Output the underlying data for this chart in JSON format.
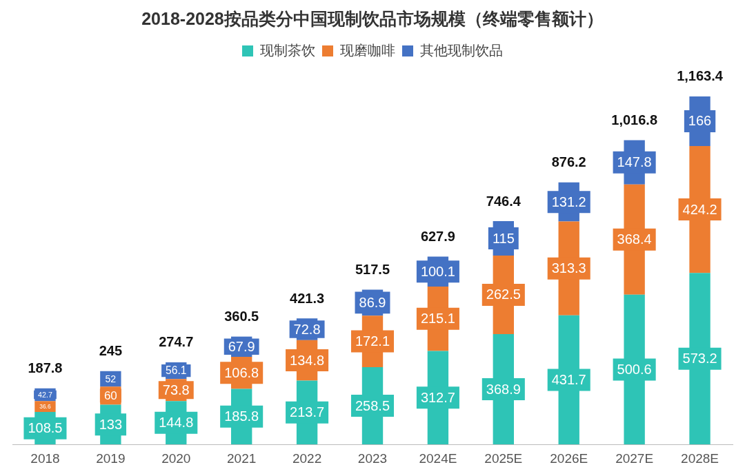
{
  "chart_data": {
    "type": "bar",
    "title": "2018-2028按品类分中国现制饮品市场规模（终端零售额计）",
    "categories": [
      "2018",
      "2019",
      "2020",
      "2021",
      "2022",
      "2023",
      "2024E",
      "2025E",
      "2026E",
      "2027E",
      "2028E"
    ],
    "stacked": true,
    "legend": "top",
    "grid": false,
    "tick_labels": "x",
    "data_labels": true,
    "series": [
      {
        "name": "现制茶饮",
        "color": "#2ec4b6",
        "values": [
          108.5,
          133,
          144.8,
          185.8,
          213.7,
          258.5,
          312.7,
          368.9,
          431.7,
          500.6,
          573.2
        ]
      },
      {
        "name": "现磨咖啡",
        "color": "#ed7d31",
        "values": [
          36.6,
          60,
          73.8,
          106.8,
          134.8,
          172.1,
          215.1,
          262.5,
          313.3,
          368.4,
          424.2
        ]
      },
      {
        "name": "其他现制饮品",
        "color": "#4472c4",
        "values": [
          42.7,
          52,
          56.1,
          67.9,
          72.8,
          86.9,
          100.1,
          115,
          131.2,
          147.8,
          166
        ]
      }
    ],
    "totals": [
      "187.8",
      "245",
      "274.7",
      "360.5",
      "421.3",
      "517.5",
      "627.9",
      "746.4",
      "876.2",
      "1,016.8",
      "1,163.4"
    ]
  }
}
